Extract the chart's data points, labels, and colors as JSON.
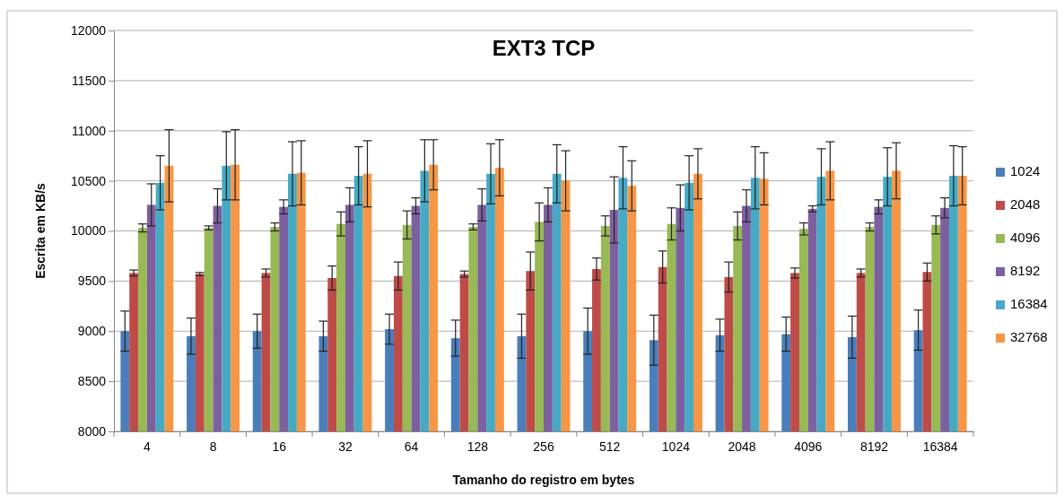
{
  "chart_data": {
    "type": "bar",
    "title": "EXT3 TCP",
    "xlabel": "Tamanho do registro em bytes",
    "ylabel": "Escrita em KB/s",
    "categories": [
      "4",
      "8",
      "16",
      "32",
      "64",
      "128",
      "256",
      "512",
      "1024",
      "2048",
      "4096",
      "8192",
      "16384"
    ],
    "ylim": [
      8000,
      12000
    ],
    "yticks": [
      8000,
      8500,
      9000,
      9500,
      10000,
      10500,
      11000,
      11500,
      12000
    ],
    "grid": "y",
    "legend": "right",
    "series": [
      {
        "name": "1024",
        "color": "#4a7ebb",
        "values": [
          9000,
          8950,
          9000,
          8950,
          9020,
          8930,
          8950,
          9000,
          8910,
          8960,
          8970,
          8940,
          9010
        ],
        "errors": [
          200,
          180,
          170,
          150,
          150,
          180,
          220,
          230,
          250,
          160,
          170,
          210,
          200
        ]
      },
      {
        "name": "2048",
        "color": "#be4b48",
        "values": [
          9580,
          9570,
          9580,
          9530,
          9550,
          9570,
          9600,
          9620,
          9640,
          9540,
          9580,
          9580,
          9590
        ],
        "errors": [
          30,
          15,
          40,
          120,
          140,
          30,
          190,
          110,
          160,
          150,
          50,
          40,
          90
        ]
      },
      {
        "name": "4096",
        "color": "#98b954",
        "values": [
          10030,
          10030,
          10040,
          10070,
          10060,
          10040,
          10090,
          10050,
          10070,
          10050,
          10020,
          10040,
          10060
        ],
        "errors": [
          40,
          20,
          40,
          120,
          140,
          30,
          190,
          100,
          160,
          140,
          60,
          40,
          90
        ]
      },
      {
        "name": "8192",
        "color": "#7d60a0",
        "values": [
          10260,
          10250,
          10240,
          10260,
          10250,
          10260,
          10260,
          10210,
          10230,
          10250,
          10220,
          10240,
          10230
        ],
        "errors": [
          210,
          170,
          70,
          170,
          80,
          160,
          170,
          330,
          230,
          160,
          30,
          70,
          100
        ]
      },
      {
        "name": "16384",
        "color": "#46aac5",
        "values": [
          10480,
          10650,
          10570,
          10550,
          10600,
          10570,
          10570,
          10530,
          10480,
          10530,
          10540,
          10540,
          10550
        ],
        "errors": [
          270,
          340,
          320,
          290,
          310,
          300,
          290,
          310,
          270,
          310,
          280,
          290,
          300
        ]
      },
      {
        "name": "32768",
        "color": "#f79646",
        "values": [
          10650,
          10660,
          10580,
          10570,
          10660,
          10630,
          10500,
          10450,
          10570,
          10520,
          10600,
          10600,
          10550
        ],
        "errors": [
          360,
          350,
          320,
          330,
          250,
          280,
          300,
          250,
          250,
          260,
          290,
          280,
          290
        ]
      }
    ]
  }
}
